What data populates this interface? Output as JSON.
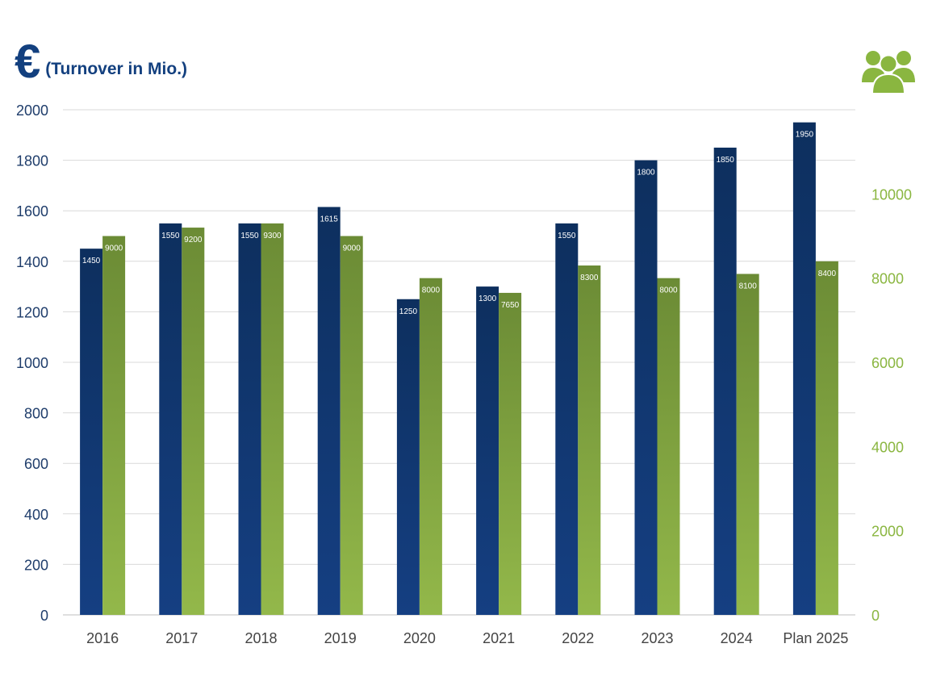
{
  "header": {
    "currency_symbol": "€",
    "unit_label": "(Turnover in Mio.)",
    "right_icon": "people-group-icon"
  },
  "colors": {
    "turnover_top": "#0d2f5e",
    "turnover_bottom": "#153f82",
    "employees_top": "#6b8b35",
    "employees_bottom": "#93b84a",
    "left_axis_text": "#1f3d6b",
    "right_axis_text": "#8ab640",
    "category_text": "#444444",
    "grid": "#d9d9d9"
  },
  "chart_data": {
    "type": "bar",
    "categories": [
      "2016",
      "2017",
      "2018",
      "2019",
      "2020",
      "2021",
      "2022",
      "2023",
      "2024",
      "Plan 2025"
    ],
    "series": [
      {
        "axis": "left",
        "values": [
          1450,
          1550,
          1550,
          1615,
          1250,
          1300,
          1550,
          1800,
          1850,
          1950
        ]
      },
      {
        "axis": "right",
        "values": [
          9000,
          9200,
          9300,
          9000,
          8000,
          7650,
          8300,
          8000,
          8100,
          8400
        ]
      }
    ],
    "left_axis": {
      "ylim": [
        0,
        2000
      ],
      "ticks": [
        "0",
        "200",
        "400",
        "600",
        "800",
        "1000",
        "1200",
        "1400",
        "1600",
        "1800",
        "2000"
      ]
    },
    "right_axis": {
      "ylim": [
        0,
        12000
      ],
      "ticks": [
        "0",
        "2000",
        "4000",
        "6000",
        "8000",
        "10000"
      ]
    },
    "grid": true,
    "data_labels": true
  }
}
